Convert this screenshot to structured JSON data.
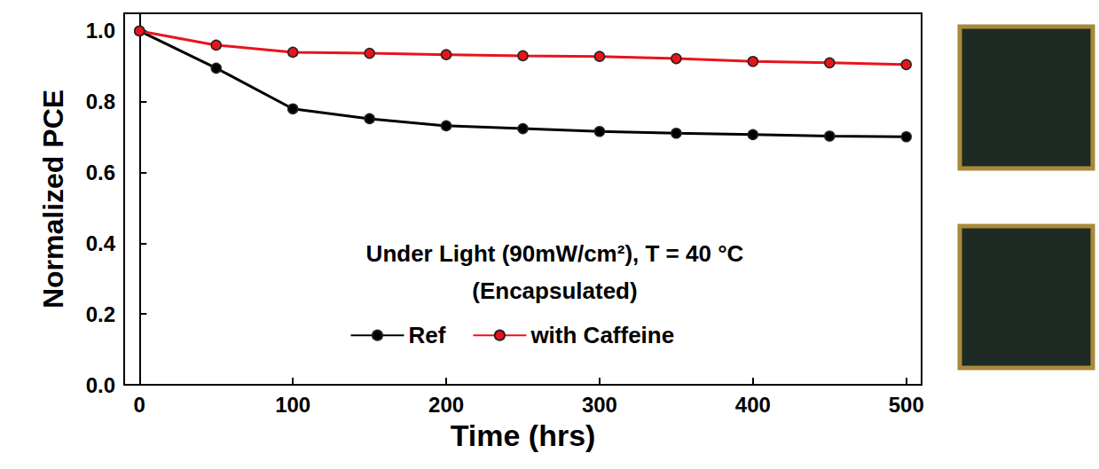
{
  "chart_data": {
    "type": "line",
    "x_label": "Time (hrs)",
    "y_label": "Normalized PCE",
    "annotations": [
      "Under Light (90mW/cm²), T = 40 °C",
      "(Encapsulated)"
    ],
    "x": [
      0,
      50,
      100,
      150,
      200,
      250,
      300,
      350,
      400,
      450,
      500
    ],
    "series": [
      {
        "name": "Ref",
        "color": "#000000",
        "marker": "circle",
        "line_style": "solid",
        "values": [
          1.0,
          0.895,
          0.78,
          0.752,
          0.732,
          0.724,
          0.716,
          0.711,
          0.707,
          0.703,
          0.701
        ]
      },
      {
        "name": "with Caffeine",
        "color": "#e8141c",
        "marker": "circle",
        "line_style": "solid",
        "values": [
          1.0,
          0.96,
          0.94,
          0.937,
          0.933,
          0.93,
          0.928,
          0.922,
          0.914,
          0.91,
          0.905
        ]
      }
    ],
    "xlim": [
      -10,
      510
    ],
    "xticks": [
      0,
      100,
      200,
      300,
      400,
      500
    ],
    "ylim": [
      0,
      1.05
    ],
    "yticks": [
      {
        "value": 0,
        "label": "0.0"
      },
      0.2,
      0.4,
      0.6,
      0.8,
      {
        "value": 1,
        "label": "1.0"
      }
    ],
    "grid": false,
    "legend": "bottom"
  }
}
